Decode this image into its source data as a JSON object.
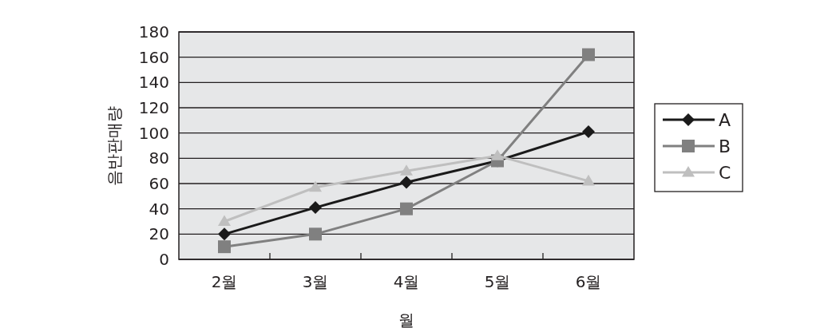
{
  "chart_data": {
    "type": "line",
    "xlabel": "월",
    "ylabel": "음반판매량",
    "categories": [
      "2월",
      "3월",
      "4월",
      "5월",
      "6월"
    ],
    "series": [
      {
        "name": "A",
        "color": "#1a1a1a",
        "marker": "diamond",
        "values": [
          20,
          41,
          61,
          78,
          101
        ]
      },
      {
        "name": "B",
        "color": "#808080",
        "marker": "square",
        "values": [
          10,
          20,
          40,
          78,
          162
        ]
      },
      {
        "name": "C",
        "color": "#bfbfbf",
        "marker": "triangle",
        "values": [
          30,
          57,
          70,
          82,
          62
        ]
      }
    ],
    "ylim": [
      0,
      180
    ],
    "yticks": [
      0,
      20,
      40,
      60,
      80,
      100,
      120,
      140,
      160,
      180
    ],
    "grid": "y",
    "legend": "right"
  }
}
